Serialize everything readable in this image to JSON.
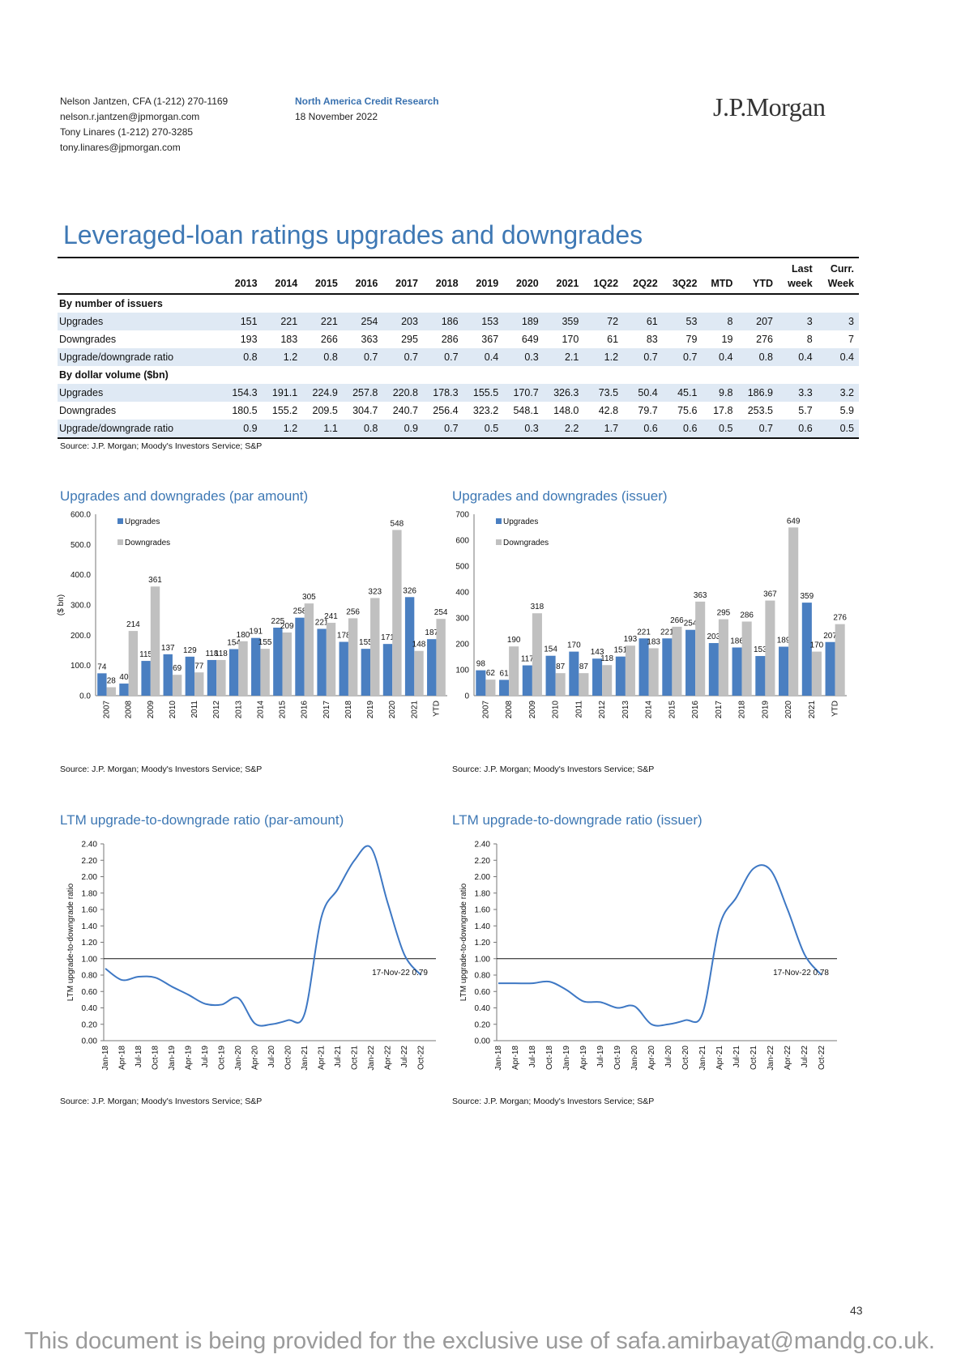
{
  "header": {
    "left": [
      "Nelson Jantzen, CFA (1-212) 270-1169",
      "nelson.r.jantzen@jpmorgan.com",
      "Tony Linares (1-212) 270-3285",
      "tony.linares@jpmorgan.com"
    ],
    "mid_title": "North America Credit Research",
    "mid_date": "18 November 2022",
    "logo": "J.P.Morgan"
  },
  "page_title": "Leveraged-loan ratings upgrades and downgrades",
  "table": {
    "columns": [
      "2013",
      "2014",
      "2015",
      "2016",
      "2017",
      "2018",
      "2019",
      "2020",
      "2021",
      "1Q22",
      "2Q22",
      "3Q22",
      "MTD",
      "YTD",
      "Last week",
      "Curr. Week"
    ],
    "sections": [
      {
        "title": "By number of issuers",
        "rows": [
          {
            "label": "Upgrades",
            "values": [
              "151",
              "221",
              "221",
              "254",
              "203",
              "186",
              "153",
              "189",
              "359",
              "72",
              "61",
              "53",
              "8",
              "207",
              "3",
              "3"
            ]
          },
          {
            "label": "Downgrades",
            "values": [
              "193",
              "183",
              "266",
              "363",
              "295",
              "286",
              "367",
              "649",
              "170",
              "61",
              "83",
              "79",
              "19",
              "276",
              "8",
              "7"
            ]
          },
          {
            "label": "Upgrade/downgrade ratio",
            "values": [
              "0.8",
              "1.2",
              "0.8",
              "0.7",
              "0.7",
              "0.7",
              "0.4",
              "0.3",
              "2.1",
              "1.2",
              "0.7",
              "0.7",
              "0.4",
              "0.8",
              "0.4",
              "0.4"
            ]
          }
        ]
      },
      {
        "title": "By dollar volume ($bn)",
        "rows": [
          {
            "label": "Upgrades",
            "values": [
              "154.3",
              "191.1",
              "224.9",
              "257.8",
              "220.8",
              "178.3",
              "155.5",
              "170.7",
              "326.3",
              "73.5",
              "50.4",
              "45.1",
              "9.8",
              "186.9",
              "3.3",
              "3.2"
            ]
          },
          {
            "label": "Downgrades",
            "values": [
              "180.5",
              "155.2",
              "209.5",
              "304.7",
              "240.7",
              "256.4",
              "323.2",
              "548.1",
              "148.0",
              "42.8",
              "79.7",
              "75.6",
              "17.8",
              "253.5",
              "5.7",
              "5.9"
            ]
          },
          {
            "label": "Upgrade/downgrade ratio",
            "values": [
              "0.9",
              "1.2",
              "1.1",
              "0.8",
              "0.9",
              "0.7",
              "0.5",
              "0.3",
              "2.2",
              "1.7",
              "0.6",
              "0.6",
              "0.5",
              "0.7",
              "0.6",
              "0.5"
            ]
          }
        ]
      }
    ],
    "source": "Source: J.P. Morgan; Moody's Investors Service; S&P"
  },
  "chart_data": [
    {
      "type": "bar",
      "title": "Upgrades and downgrades (par amount)",
      "ylabel": "($ bn)",
      "categories": [
        "2007",
        "2008",
        "2009",
        "2010",
        "2011",
        "2012",
        "2013",
        "2014",
        "2015",
        "2016",
        "2017",
        "2018",
        "2019",
        "2020",
        "2021",
        "YTD"
      ],
      "series": [
        {
          "name": "Upgrades",
          "values": [
            74,
            40,
            115,
            137,
            129,
            118,
            154,
            191,
            225,
            258,
            221,
            178,
            155,
            171,
            326,
            187
          ],
          "color": "#4a7fc1"
        },
        {
          "name": "Downgrades",
          "values": [
            28,
            214,
            361,
            69,
            77,
            118,
            180,
            155,
            209,
            305,
            241,
            256,
            323,
            548,
            148,
            254
          ],
          "color": "#c0c0c0"
        }
      ],
      "ylim": [
        0,
        600
      ],
      "yticks": [
        "0.0",
        "100.0",
        "200.0",
        "300.0",
        "400.0",
        "500.0",
        "600.0"
      ],
      "legend": "top-left",
      "source": "Source: J.P. Morgan; Moody's Investors Service; S&P"
    },
    {
      "type": "bar",
      "title": "Upgrades and downgrades (issuer)",
      "categories": [
        "2007",
        "2008",
        "2009",
        "2010",
        "2011",
        "2012",
        "2013",
        "2014",
        "2015",
        "2016",
        "2017",
        "2018",
        "2019",
        "2020",
        "2021",
        "YTD"
      ],
      "series": [
        {
          "name": "Upgrades",
          "values": [
            98,
            61,
            117,
            154,
            170,
            143,
            151,
            221,
            221,
            254,
            203,
            186,
            153,
            189,
            359,
            207
          ],
          "color": "#4a7fc1"
        },
        {
          "name": "Downgrades",
          "values": [
            62,
            190,
            318,
            87,
            87,
            118,
            193,
            183,
            266,
            363,
            295,
            286,
            367,
            649,
            170,
            276
          ],
          "color": "#c0c0c0"
        }
      ],
      "ylim": [
        0,
        700
      ],
      "yticks": [
        "0",
        "100",
        "200",
        "300",
        "400",
        "500",
        "600",
        "700"
      ],
      "legend": "top-left",
      "source": "Source: J.P. Morgan; Moody's Investors Service; S&P"
    },
    {
      "type": "line",
      "title": "LTM upgrade-to-downgrade ratio (par-amount)",
      "ylabel": "LTM upgrade-to-downgrade ratio",
      "x": [
        "Jan-18",
        "Apr-18",
        "Jul-18",
        "Oct-18",
        "Jan-19",
        "Apr-19",
        "Jul-19",
        "Oct-19",
        "Jan-20",
        "Apr-20",
        "Jul-20",
        "Oct-20",
        "Jan-21",
        "Apr-21",
        "Jul-21",
        "Oct-21",
        "Jan-22",
        "Apr-22",
        "Jul-22",
        "Oct-22"
      ],
      "y": [
        0.88,
        0.74,
        0.78,
        0.77,
        0.66,
        0.56,
        0.45,
        0.44,
        0.52,
        0.21,
        0.2,
        0.25,
        0.33,
        1.5,
        1.85,
        2.2,
        2.35,
        1.68,
        1.05,
        0.8
      ],
      "ylim": [
        0,
        2.4
      ],
      "yticks": [
        "0.00",
        "0.20",
        "0.40",
        "0.60",
        "0.80",
        "1.00",
        "1.20",
        "1.40",
        "1.60",
        "1.80",
        "2.00",
        "2.20",
        "2.40"
      ],
      "reference_line": 1.0,
      "annotation": "17-Nov-22 0.79",
      "color": "#3e78c4",
      "source": "Source: J.P. Morgan; Moody's Investors Service; S&P"
    },
    {
      "type": "line",
      "title": "LTM upgrade-to-downgrade ratio (issuer)",
      "ylabel": "LTM upgrade-to-downgrade ratio",
      "x": [
        "Jan-18",
        "Apr-18",
        "Jul-18",
        "Oct-18",
        "Jan-19",
        "Apr-19",
        "Jul-19",
        "Oct-19",
        "Jan-20",
        "Apr-20",
        "Jul-20",
        "Oct-20",
        "Jan-21",
        "Apr-21",
        "Jul-21",
        "Oct-21",
        "Jan-22",
        "Apr-22",
        "Jul-22",
        "Oct-22"
      ],
      "y": [
        0.7,
        0.7,
        0.7,
        0.72,
        0.62,
        0.48,
        0.47,
        0.4,
        0.42,
        0.2,
        0.2,
        0.25,
        0.33,
        1.4,
        1.75,
        2.1,
        2.08,
        1.6,
        1.05,
        0.8
      ],
      "ylim": [
        0,
        2.4
      ],
      "yticks": [
        "0.00",
        "0.20",
        "0.40",
        "0.60",
        "0.80",
        "1.00",
        "1.20",
        "1.40",
        "1.60",
        "1.80",
        "2.00",
        "2.20",
        "2.40"
      ],
      "reference_line": 1.0,
      "annotation": "17-Nov-22 0.78",
      "color": "#3e78c4",
      "source": "Source: J.P. Morgan; Moody's Investors Service; S&P"
    }
  ],
  "page_number": "43",
  "footer": "This document is being provided for the exclusive use of safa.amirbayat@mandg.co.uk."
}
